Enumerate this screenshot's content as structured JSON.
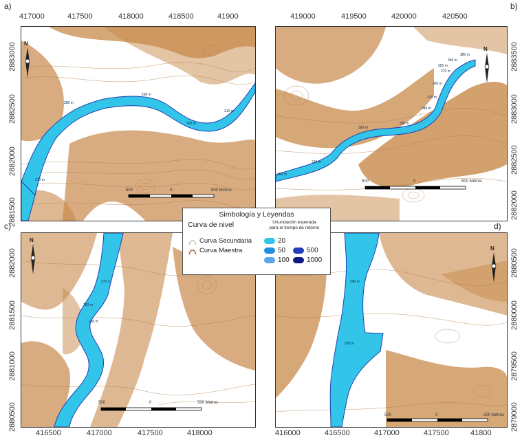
{
  "panels": {
    "a": {
      "label": "a)",
      "x_ticks": [
        "417000",
        "417500",
        "418000",
        "418500",
        "41900"
      ],
      "y_ticks": [
        "2883000",
        "2882500",
        "2882000",
        "2881500"
      ],
      "river_labels": [
        "280 m",
        "290 m",
        "300 m",
        "310 m",
        "270 m"
      ],
      "scale": {
        "left": "500",
        "mid": "0",
        "right": "500 Metros"
      }
    },
    "b": {
      "label": "b)",
      "x_ticks": [
        "419000",
        "419500",
        "420000",
        "420500"
      ],
      "y_ticks": [
        "2883500",
        "2883000",
        "2882500",
        "2882000"
      ],
      "river_labels": [
        "380 m",
        "360 m",
        "350 m",
        "270 m",
        "360 m",
        "310 m",
        "340 m",
        "330 m",
        "320 m",
        "310 m",
        "300 m"
      ],
      "scale": {
        "left": "500",
        "mid": "0",
        "right": "500 Metros"
      }
    },
    "c": {
      "label": "c)",
      "x_ticks": [
        "416500",
        "417000",
        "417500",
        "418000"
      ],
      "y_ticks": [
        "2882000",
        "2881500",
        "2881000",
        "2880500"
      ],
      "river_labels": [
        "270 m",
        "260 m",
        "250 m"
      ],
      "scale": {
        "left": "500",
        "mid": "0",
        "right": "500 Metros"
      }
    },
    "d": {
      "label": "d)",
      "x_ticks": [
        "416000",
        "416500",
        "417000",
        "417500",
        "41800"
      ],
      "y_ticks": [
        "2880500",
        "2880000",
        "2879500",
        "2879000"
      ],
      "river_labels": [
        "240 m",
        "230 m"
      ],
      "scale": {
        "left": "500",
        "mid": "0",
        "right": "500 Metros"
      }
    }
  },
  "north_letter": "N",
  "legend": {
    "title": "Simbología y Leyendas",
    "contour_title": "Curva de nivel",
    "contour_items": [
      "Curva Secundaria",
      "Curva Maestra"
    ],
    "flood_title_line1": "Unundación esperada",
    "flood_title_line2": "para el tiempo de retorno",
    "flood_items": [
      {
        "label": "20",
        "color": "#33c4ea"
      },
      {
        "label": "50",
        "color": "#1f8fe0"
      },
      {
        "label": "100",
        "color": "#5aa6e8"
      },
      {
        "label": "500",
        "color": "#2440b8"
      },
      {
        "label": "1000",
        "color": "#101a80"
      }
    ]
  },
  "colors": {
    "terrain": "#c8894a",
    "contour_minor": "#c49468",
    "contour_major": "#a8642c",
    "water": "#33c4ea",
    "water_edge": "#1f3fb0"
  }
}
